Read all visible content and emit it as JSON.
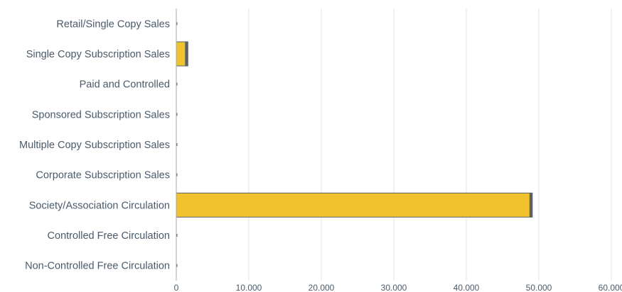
{
  "chart_data": {
    "type": "bar",
    "orientation": "horizontal",
    "categories": [
      "Retail/Single Copy Sales",
      "Single Copy Subscription Sales",
      "Paid and Controlled",
      "Sponsored Subscription Sales",
      "Multiple Copy Subscription Sales",
      "Corporate Subscription Sales",
      "Society/Association Circulation",
      "Controlled Free Circulation",
      "Non-Controlled Free Circulation"
    ],
    "values": [
      0,
      1600,
      0,
      0,
      0,
      0,
      49100,
      0,
      0
    ],
    "xlim": [
      0,
      60000
    ],
    "xticks": [
      0,
      10000,
      20000,
      30000,
      40000,
      50000,
      60000
    ],
    "xtick_labels": [
      "0",
      "10.000",
      "20.000",
      "30.000",
      "40.000",
      "50.000",
      "60.000"
    ],
    "grid": true,
    "colors": {
      "bar_fill": "#f0c22e",
      "bar_edge": "#5a6168",
      "grid": "#e4e4e4",
      "axis": "#aaaaaa",
      "text": "#4a5a6a"
    }
  }
}
